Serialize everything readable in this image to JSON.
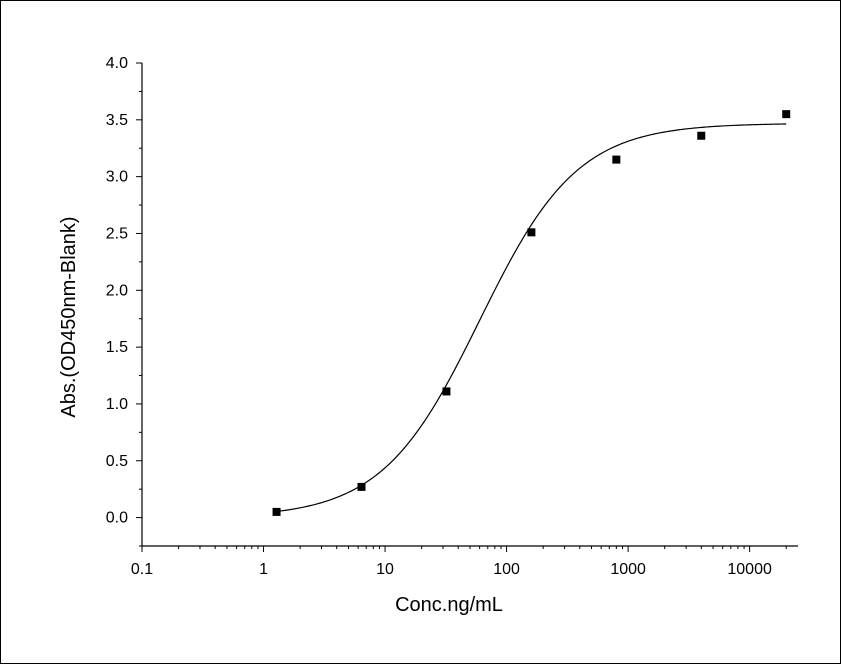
{
  "chart_data": {
    "type": "scatter",
    "title": "",
    "xlabel": "Conc.ng/mL",
    "ylabel": "Abs.(OD450nm-Blank)",
    "x_scale": "log",
    "xlim": [
      0.1,
      25000
    ],
    "ylim": [
      -0.25,
      4.0
    ],
    "x_ticks": [
      0.1,
      1,
      10,
      100,
      1000,
      10000
    ],
    "x_tick_labels": [
      "0.1",
      "1",
      "10",
      "100",
      "1000",
      "10000"
    ],
    "y_ticks": [
      0.0,
      0.5,
      1.0,
      1.5,
      2.0,
      2.5,
      3.0,
      3.5,
      4.0
    ],
    "y_tick_labels": [
      "0.0",
      "0.5",
      "1.0",
      "1.5",
      "2.0",
      "2.5",
      "3.0",
      "3.5",
      "4.0"
    ],
    "grid": false,
    "legend": "none",
    "series": [
      {
        "type": "scatter",
        "marker": "square",
        "x": [
          1.28,
          6.4,
          32,
          160,
          800,
          4000,
          20000
        ],
        "y": [
          0.05,
          0.27,
          1.11,
          2.51,
          3.15,
          3.36,
          3.55
        ]
      }
    ],
    "fit": {
      "type": "4PL",
      "bottom": 0.0,
      "top": 3.47,
      "ec50": 60,
      "hill": 1.08,
      "x_range": [
        1.28,
        20000
      ]
    },
    "colors": {
      "axis": "#000000",
      "marker": "#000000",
      "curve": "#000000"
    }
  }
}
